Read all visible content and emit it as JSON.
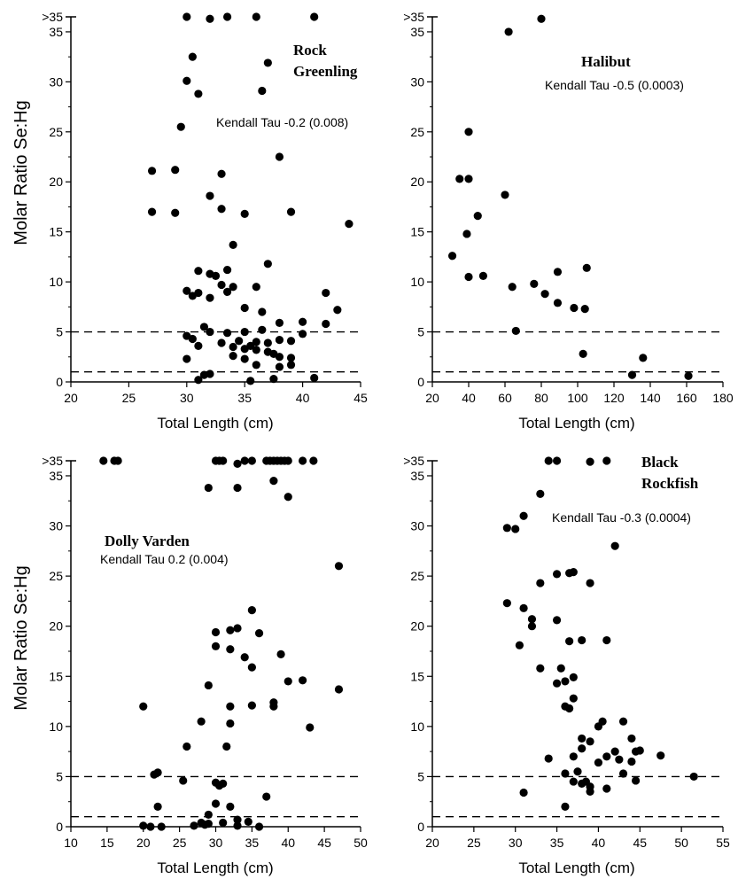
{
  "figure": {
    "y_axis_label": "Molar Ratio Se:Hg",
    "x_axis_label": "Total Length (cm)",
    "reference_lines": [
      5,
      1
    ],
    "overflow_tick_label": ">35"
  },
  "chart_data": [
    {
      "type": "scatter",
      "title": [
        "Rock",
        "Greenling"
      ],
      "annotation": "Kendall Tau -0.2 (0.008)",
      "xlabel": "Total Length (cm)",
      "ylabel": "Molar Ratio Se:Hg",
      "xlim": [
        20,
        45
      ],
      "ylim": [
        0,
        36.5
      ],
      "xticks": [
        20,
        25,
        30,
        35,
        40,
        45
      ],
      "yticks": [
        0,
        5,
        10,
        15,
        20,
        25,
        30,
        35
      ],
      "overflow_label": ">35",
      "overflow_value": 36.5,
      "hlines": [
        5,
        1
      ],
      "series": [
        {
          "x": [
            30,
            32,
            33.5,
            36,
            41,
            30.5,
            37,
            30,
            36.5,
            31,
            29.5,
            27,
            29,
            33,
            38,
            32,
            33,
            27,
            29,
            35,
            39,
            44,
            34,
            32,
            33.5,
            31,
            32.5,
            33,
            34,
            36,
            31,
            30,
            32,
            30.5,
            33.5,
            35,
            36.5,
            37,
            42,
            43,
            42,
            40,
            38,
            36.5,
            35,
            33.5,
            31.5,
            30,
            30.5,
            31,
            33,
            34.5,
            36,
            37,
            38,
            39,
            40,
            34,
            35,
            35.5,
            36,
            37,
            37.5,
            38,
            39,
            38,
            34,
            35,
            31.5,
            32,
            30,
            31,
            36,
            39,
            41,
            35.5,
            37.5,
            32
          ],
          "y": [
            36.5,
            36.3,
            36.5,
            36.5,
            36.5,
            32.5,
            31.9,
            30.1,
            29.1,
            28.8,
            25.5,
            21.1,
            21.2,
            20.8,
            22.5,
            18.6,
            17.3,
            17.0,
            16.9,
            16.8,
            17.0,
            15.8,
            13.7,
            10.8,
            11.2,
            11.1,
            10.6,
            9.7,
            9.5,
            9.5,
            8.9,
            9.1,
            8.4,
            8.6,
            9.0,
            7.4,
            7.0,
            11.8,
            8.9,
            7.2,
            5.8,
            6.0,
            5.9,
            5.2,
            5.0,
            4.9,
            5.5,
            4.6,
            4.3,
            3.6,
            3.9,
            4.1,
            4.0,
            3.9,
            4.2,
            4.1,
            4.8,
            3.5,
            3.3,
            3.6,
            3.2,
            3.0,
            2.8,
            2.5,
            2.4,
            1.5,
            2.6,
            2.3,
            0.7,
            0.8,
            2.3,
            0.2,
            1.7,
            1.7,
            0.4,
            0.1,
            0.3,
            5.0
          ]
        }
      ]
    },
    {
      "type": "scatter",
      "title": [
        "Halibut"
      ],
      "annotation": "Kendall Tau -0.5 (0.0003)",
      "xlabel": "Total Length (cm)",
      "ylabel": "Molar Ratio Se:Hg",
      "xlim": [
        20,
        180
      ],
      "ylim": [
        0,
        36.5
      ],
      "xticks": [
        20,
        40,
        60,
        80,
        100,
        120,
        140,
        160,
        180
      ],
      "yticks": [
        0,
        5,
        10,
        15,
        20,
        25,
        30,
        35
      ],
      "overflow_label": ">35",
      "overflow_value": 36.5,
      "hlines": [
        5,
        1
      ],
      "series": [
        {
          "x": [
            80,
            62,
            40,
            35,
            40,
            60,
            45,
            39,
            31,
            40,
            48,
            64,
            76,
            82,
            89,
            105,
            98,
            104,
            66,
            89,
            103,
            136,
            130,
            161
          ],
          "y": [
            36.3,
            35.0,
            25.0,
            20.3,
            20.3,
            18.7,
            16.6,
            14.8,
            12.6,
            10.5,
            10.6,
            9.5,
            9.8,
            8.8,
            11.0,
            11.4,
            7.4,
            7.3,
            5.1,
            7.9,
            2.8,
            2.4,
            0.7,
            0.6
          ]
        }
      ]
    },
    {
      "type": "scatter",
      "title": [
        "Dolly Varden"
      ],
      "annotation": "Kendall Tau 0.2 (0.004)",
      "xlabel": "Total Length (cm)",
      "ylabel": "Molar Ratio Se:Hg",
      "xlim": [
        10,
        50
      ],
      "ylim": [
        0,
        36.5
      ],
      "xticks": [
        10,
        15,
        20,
        25,
        30,
        35,
        40,
        45,
        50
      ],
      "yticks": [
        0,
        5,
        10,
        15,
        20,
        25,
        30,
        35
      ],
      "overflow_label": ">35",
      "overflow_value": 36.5,
      "hlines": [
        5,
        1
      ],
      "series": [
        {
          "x": [
            14.5,
            16,
            16.5,
            30,
            30.5,
            31,
            33,
            34,
            35,
            37,
            37.5,
            38,
            38.5,
            39,
            39.5,
            40,
            42,
            43.5,
            29,
            33,
            38,
            40,
            47,
            35,
            30,
            32,
            33,
            36,
            34,
            30,
            32,
            29,
            39,
            38,
            35,
            42,
            40,
            47,
            20,
            32,
            35,
            43,
            28,
            38,
            32,
            31.5,
            26,
            22,
            21.5,
            25.5,
            30,
            30.5,
            31,
            30,
            22,
            32,
            37,
            29,
            33,
            34.5,
            31,
            20,
            21,
            22.5,
            27,
            28,
            28.5,
            29,
            33,
            36
          ],
          "y": [
            36.5,
            36.5,
            36.5,
            36.5,
            36.5,
            36.5,
            36.2,
            36.5,
            36.5,
            36.5,
            36.5,
            36.5,
            36.5,
            36.5,
            36.5,
            36.5,
            36.5,
            36.5,
            33.8,
            33.8,
            34.5,
            32.9,
            26.0,
            21.6,
            19.4,
            19.6,
            19.8,
            19.3,
            16.9,
            18.0,
            17.7,
            14.1,
            17.2,
            12.0,
            15.9,
            14.6,
            14.5,
            13.7,
            12.0,
            12.0,
            12.1,
            9.9,
            10.5,
            12.4,
            10.3,
            8.0,
            8.0,
            5.4,
            5.2,
            4.6,
            4.4,
            4.1,
            4.3,
            2.3,
            2.0,
            2.0,
            3.0,
            1.2,
            0.7,
            0.5,
            0.4,
            0.1,
            0.0,
            0.0,
            0.1,
            0.4,
            0.2,
            0.3,
            0.1,
            0.0
          ]
        }
      ]
    },
    {
      "type": "scatter",
      "title": [
        "Black",
        "Rockfish"
      ],
      "annotation": "Kendall Tau -0.3 (0.0004)",
      "xlabel": "Total Length (cm)",
      "ylabel": "Molar Ratio Se:Hg",
      "xlim": [
        20,
        55
      ],
      "ylim": [
        0,
        36.5
      ],
      "xticks": [
        20,
        25,
        30,
        35,
        40,
        45,
        50,
        55
      ],
      "yticks": [
        0,
        5,
        10,
        15,
        20,
        25,
        30,
        35
      ],
      "overflow_label": ">35",
      "overflow_value": 36.5,
      "hlines": [
        5,
        1
      ],
      "series": [
        {
          "x": [
            34,
            35,
            39,
            41,
            33,
            31,
            29,
            30,
            42,
            37,
            36.5,
            35,
            33,
            39,
            29,
            31,
            32,
            32,
            35,
            30.5,
            36.5,
            38,
            33,
            35.5,
            37,
            36,
            37,
            35,
            41,
            40.5,
            36,
            36.5,
            43,
            38,
            40,
            44,
            39,
            42,
            44.5,
            44,
            38,
            37,
            41,
            45,
            47.5,
            40,
            43,
            36,
            37.5,
            34,
            42.5,
            44.5,
            51.5,
            38.5,
            38,
            39,
            37,
            41,
            31,
            36,
            39
          ],
          "y": [
            36.5,
            36.5,
            36.4,
            36.5,
            33.2,
            31.0,
            29.8,
            29.7,
            28.0,
            25.4,
            25.3,
            25.2,
            24.3,
            24.3,
            22.3,
            21.8,
            20.0,
            20.7,
            20.6,
            18.1,
            18.5,
            18.6,
            15.8,
            15.8,
            14.9,
            14.5,
            12.8,
            14.3,
            18.6,
            10.5,
            12.0,
            11.8,
            10.5,
            8.8,
            10.0,
            8.8,
            8.5,
            7.5,
            7.5,
            6.5,
            7.8,
            7.0,
            7.0,
            7.6,
            7.1,
            6.4,
            5.3,
            5.3,
            5.5,
            6.8,
            6.7,
            4.6,
            5.0,
            4.5,
            4.3,
            4.0,
            4.5,
            3.8,
            3.4,
            2.0,
            3.5
          ]
        }
      ]
    }
  ]
}
